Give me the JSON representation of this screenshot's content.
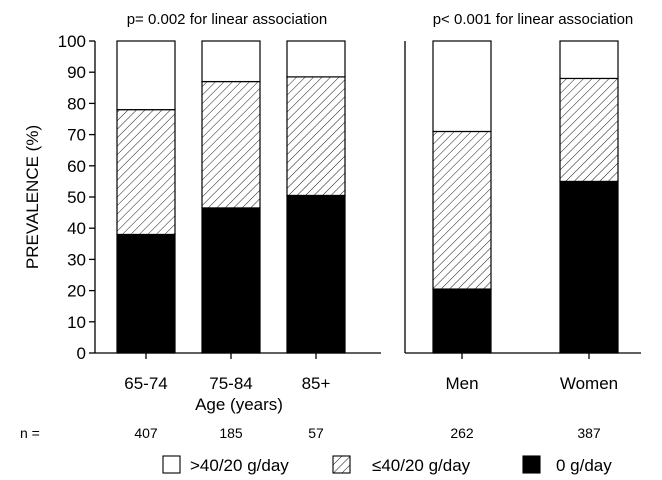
{
  "chart_data": {
    "type": "bar",
    "stacked": true,
    "ylabel": "PREVALENCE (%)",
    "ylim": [
      0,
      100
    ],
    "yticks": [
      0,
      10,
      20,
      30,
      40,
      50,
      60,
      70,
      80,
      90,
      100
    ],
    "grid": false,
    "legend": {
      "placement": "bottom",
      "entries": [
        {
          "label": ">40/20 g/day",
          "pattern": "white"
        },
        {
          "label": "≤40/20 g/day",
          "pattern": "hatched"
        },
        {
          "label": "0 g/day",
          "pattern": "black"
        }
      ]
    },
    "n_prefix": "n =",
    "panels": [
      {
        "annotation": "p= 0.002 for linear association",
        "xlabel": "Age (years)",
        "categories": [
          "65-74",
          "75-84",
          "85+"
        ],
        "n": [
          "407",
          "185",
          "57"
        ],
        "series": [
          {
            "name": "0 g/day",
            "values": [
              38,
              46.5,
              50.5
            ]
          },
          {
            "name": "≤40/20 g/day",
            "values": [
              40,
              40.5,
              38
            ]
          },
          {
            "name": ">40/20 g/day",
            "values": [
              22,
              13,
              11.5
            ]
          }
        ]
      },
      {
        "annotation": "p< 0.001 for linear association",
        "xlabel": "",
        "categories": [
          "Men",
          "Women"
        ],
        "n": [
          "262",
          "387"
        ],
        "series": [
          {
            "name": "0 g/day",
            "values": [
              20.5,
              55
            ]
          },
          {
            "name": "≤40/20 g/day",
            "values": [
              50.5,
              33
            ]
          },
          {
            "name": ">40/20 g/day",
            "values": [
              29,
              12
            ]
          }
        ]
      }
    ]
  }
}
